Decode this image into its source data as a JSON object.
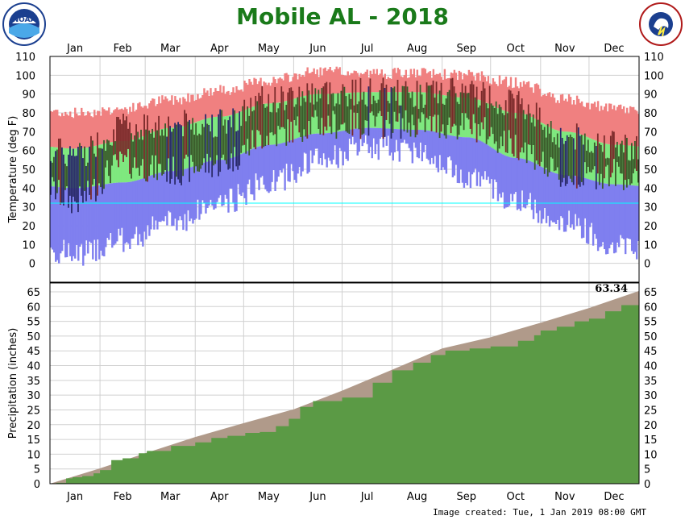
{
  "title": "Mobile AL - 2018",
  "footer": "Image created: Tue, 1 Jan 2019 08:00 GMT",
  "logos": {
    "left": {
      "text": "NOAA",
      "icon": "noaa-logo"
    },
    "right": {
      "text": "NATIONAL WEATHER SERVICE",
      "icon": "nws-logo"
    }
  },
  "colors": {
    "record_high": "#f08080",
    "normal_range": "#7fe87f",
    "record_low": "#7f7fef",
    "actual_temp": "#3a5a2a",
    "actual_temp_warm": "#7a2a2a",
    "actual_temp_cold": "#2a2a6a",
    "normal_precip": "#b09a8a",
    "actual_precip": "#5b9a45",
    "freezing_line": "#00ffff",
    "title": "#1a7a1a"
  },
  "chart_data": [
    {
      "type": "bar",
      "ylabel": "Temperature (deg F)",
      "months": [
        "Jan",
        "Feb",
        "Mar",
        "Apr",
        "May",
        "Jun",
        "Jul",
        "Aug",
        "Sep",
        "Oct",
        "Nov",
        "Dec"
      ],
      "yticks": [
        0,
        10,
        20,
        30,
        40,
        50,
        60,
        70,
        80,
        90,
        100,
        110
      ],
      "ylim": [
        -10,
        110
      ],
      "freezing_line": 32,
      "grid": true,
      "monthly_summary": {
        "record_high": [
          80,
          82,
          87,
          92,
          97,
          102,
          101,
          101,
          100,
          96,
          87,
          82
        ],
        "normal_high": [
          61,
          65,
          72,
          78,
          85,
          90,
          91,
          91,
          88,
          80,
          70,
          63
        ],
        "normal_low": [
          40,
          43,
          49,
          55,
          63,
          69,
          72,
          71,
          67,
          56,
          47,
          42
        ],
        "record_low": [
          5,
          12,
          22,
          32,
          43,
          55,
          62,
          60,
          47,
          33,
          22,
          10
        ],
        "actual_high": [
          58,
          72,
          74,
          75,
          87,
          91,
          91,
          90,
          91,
          85,
          67,
          63
        ],
        "actual_low": [
          33,
          53,
          49,
          53,
          68,
          74,
          74,
          74,
          73,
          63,
          45,
          48
        ]
      }
    },
    {
      "type": "area",
      "ylabel": "Precipitation (inches)",
      "months": [
        "Jan",
        "Feb",
        "Mar",
        "Apr",
        "May",
        "Jun",
        "Jul",
        "Aug",
        "Sep",
        "Oct",
        "Nov",
        "Dec"
      ],
      "yticks": [
        0,
        5,
        10,
        15,
        20,
        25,
        30,
        35,
        40,
        45,
        50,
        55,
        60,
        65
      ],
      "ylim": [
        0,
        68
      ],
      "grid": true,
      "total_label": "63.34",
      "series": [
        {
          "name": "normal",
          "x_day": [
            0,
            31,
            59,
            90,
            120,
            151,
            181,
            212,
            243,
            273,
            304,
            334,
            365
          ],
          "values": [
            0,
            5.2,
            10.3,
            15.8,
            20.5,
            25.2,
            31.5,
            38.6,
            45.8,
            49.6,
            54.5,
            59.5,
            65.3
          ]
        },
        {
          "name": "actual",
          "x_day": [
            0,
            4,
            10,
            14,
            20,
            27,
            31,
            38,
            45,
            55,
            60,
            75,
            90,
            100,
            110,
            121,
            130,
            140,
            148,
            155,
            163,
            181,
            200,
            212,
            225,
            236,
            245,
            260,
            273,
            290,
            300,
            304,
            314,
            325,
            334,
            344,
            354,
            365
          ],
          "values": [
            0,
            0.3,
            1.8,
            2.2,
            2.6,
            3.5,
            4.6,
            8.0,
            8.6,
            10.3,
            11.1,
            12.8,
            14.0,
            15.5,
            16.2,
            17.2,
            17.5,
            19.5,
            22.0,
            26.0,
            28.0,
            29.2,
            34.2,
            38.4,
            41.0,
            43.6,
            45.1,
            45.8,
            46.5,
            48.4,
            50.3,
            51.9,
            53.2,
            55.0,
            55.9,
            58.4,
            60.5,
            63.34
          ]
        }
      ]
    }
  ]
}
